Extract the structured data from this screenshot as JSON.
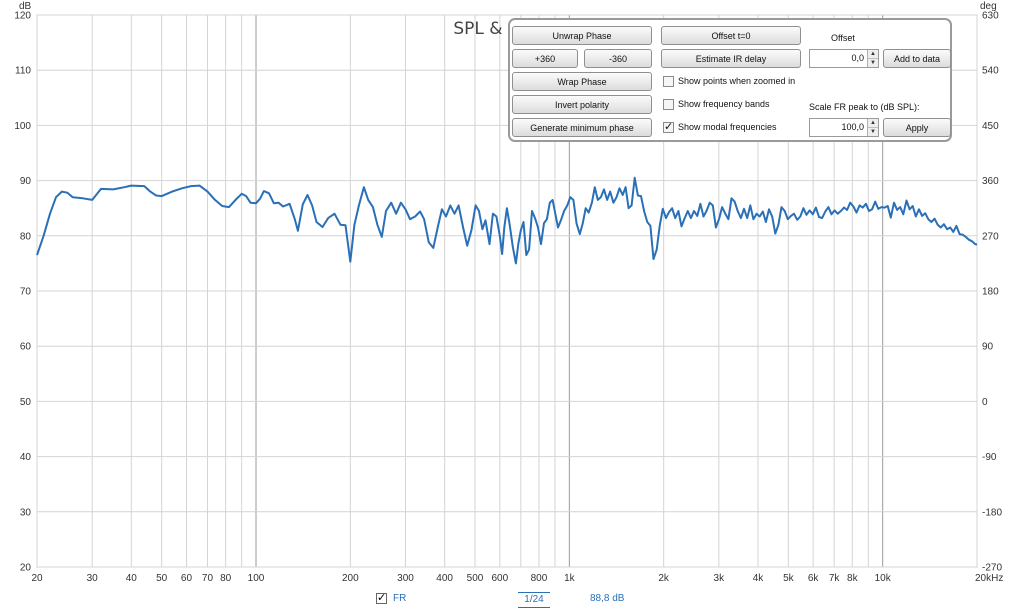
{
  "chart_data": {
    "type": "line",
    "title": "SPL & Phase",
    "left_unit": "dB",
    "right_unit": "deg",
    "x_scale": "log",
    "xlim": [
      20,
      20000
    ],
    "ylim": [
      20,
      120
    ],
    "right_ylim": [
      -270,
      630
    ],
    "grid": true,
    "y_ticks": [
      "20",
      "30",
      "40",
      "50",
      "60",
      "70",
      "80",
      "90",
      "100",
      "110",
      "120"
    ],
    "right_ticks": [
      "-270",
      "-180",
      "-90",
      "0",
      "90",
      "180",
      "270",
      "360",
      "450",
      "540",
      "630"
    ],
    "x_ticks": [
      {
        "value": 20,
        "label": "20"
      },
      {
        "value": 30,
        "label": "30"
      },
      {
        "value": 40,
        "label": "40"
      },
      {
        "value": 50,
        "label": "50"
      },
      {
        "value": 60,
        "label": "60"
      },
      {
        "value": 70,
        "label": "70"
      },
      {
        "value": 80,
        "label": "80"
      },
      {
        "value": 100,
        "label": "100"
      },
      {
        "value": 200,
        "label": "200"
      },
      {
        "value": 300,
        "label": "300"
      },
      {
        "value": 400,
        "label": "400"
      },
      {
        "value": 500,
        "label": "500"
      },
      {
        "value": 600,
        "label": "600"
      },
      {
        "value": 800,
        "label": "800"
      },
      {
        "value": 1000,
        "label": "1k"
      },
      {
        "value": 2000,
        "label": "2k"
      },
      {
        "value": 3000,
        "label": "3k"
      },
      {
        "value": 4000,
        "label": "4k"
      },
      {
        "value": 5000,
        "label": "5k"
      },
      {
        "value": 6000,
        "label": "6k"
      },
      {
        "value": 7000,
        "label": "7k"
      },
      {
        "value": 8000,
        "label": "8k"
      },
      {
        "value": 10000,
        "label": "10k"
      },
      {
        "value": 20000,
        "label": "20kHz"
      }
    ],
    "series": [
      {
        "name": "FR",
        "color": "#2a70b8",
        "points": [
          [
            20,
            76.5
          ],
          [
            21,
            80
          ],
          [
            22,
            84
          ],
          [
            23,
            87
          ],
          [
            24,
            88
          ],
          [
            25,
            87.8
          ],
          [
            26,
            87
          ],
          [
            28,
            86.8
          ],
          [
            30,
            86.5
          ],
          [
            32,
            88.5
          ],
          [
            35,
            88.4
          ],
          [
            38,
            88.8
          ],
          [
            40,
            89.1
          ],
          [
            44,
            89
          ],
          [
            46,
            88
          ],
          [
            48,
            87.3
          ],
          [
            50,
            87.2
          ],
          [
            54,
            88
          ],
          [
            58,
            88.6
          ],
          [
            62,
            89
          ],
          [
            66,
            89.1
          ],
          [
            70,
            88
          ],
          [
            74,
            86.5
          ],
          [
            78,
            85.4
          ],
          [
            82,
            85.2
          ],
          [
            86,
            86.5
          ],
          [
            90,
            87.6
          ],
          [
            93,
            87.2
          ],
          [
            96,
            86
          ],
          [
            100,
            85.9
          ],
          [
            103,
            86.7
          ],
          [
            106,
            88.1
          ],
          [
            110,
            87.7
          ],
          [
            114,
            85.9
          ],
          [
            118,
            86
          ],
          [
            122,
            85.3
          ],
          [
            128,
            85.8
          ],
          [
            133,
            83
          ],
          [
            136,
            80.9
          ],
          [
            141,
            85.7
          ],
          [
            146,
            87.4
          ],
          [
            151,
            85.5
          ],
          [
            156,
            82.5
          ],
          [
            163,
            81.6
          ],
          [
            170,
            83.2
          ],
          [
            178,
            84
          ],
          [
            186,
            82
          ],
          [
            193,
            81.9
          ],
          [
            200,
            75.3
          ],
          [
            206,
            82
          ],
          [
            213,
            85.5
          ],
          [
            221,
            88.8
          ],
          [
            228,
            86.5
          ],
          [
            236,
            85.2
          ],
          [
            244,
            82
          ],
          [
            252,
            79.8
          ],
          [
            260,
            84.5
          ],
          [
            270,
            86
          ],
          [
            280,
            84
          ],
          [
            290,
            86
          ],
          [
            300,
            84.8
          ],
          [
            310,
            83
          ],
          [
            322,
            83.5
          ],
          [
            334,
            84.4
          ],
          [
            344,
            83
          ],
          [
            356,
            78.8
          ],
          [
            368,
            77.8
          ],
          [
            380,
            81.5
          ],
          [
            392,
            84.8
          ],
          [
            404,
            83.5
          ],
          [
            417,
            85.5
          ],
          [
            430,
            84
          ],
          [
            443,
            85.5
          ],
          [
            458,
            81.5
          ],
          [
            472,
            78.2
          ],
          [
            487,
            81
          ],
          [
            502,
            85.5
          ],
          [
            515,
            84.5
          ],
          [
            528,
            81.2
          ],
          [
            540,
            82.8
          ],
          [
            556,
            78.5
          ],
          [
            570,
            84
          ],
          [
            585,
            83.5
          ],
          [
            600,
            80
          ],
          [
            610,
            76.7
          ],
          [
            620,
            81.5
          ],
          [
            632,
            85
          ],
          [
            645,
            82
          ],
          [
            660,
            78
          ],
          [
            675,
            75
          ],
          [
            687,
            78.5
          ],
          [
            700,
            81
          ],
          [
            714,
            82.5
          ],
          [
            729,
            76.5
          ],
          [
            744,
            77.5
          ],
          [
            760,
            84.5
          ],
          [
            777,
            83.2
          ],
          [
            794,
            81.5
          ],
          [
            812,
            78.5
          ],
          [
            830,
            82.3
          ],
          [
            848,
            83
          ],
          [
            866,
            86
          ],
          [
            884,
            86.5
          ],
          [
            902,
            84
          ],
          [
            920,
            81.5
          ],
          [
            940,
            82.8
          ],
          [
            962,
            84.5
          ],
          [
            985,
            85.5
          ],
          [
            1007,
            87
          ],
          [
            1030,
            86.5
          ],
          [
            1055,
            82.2
          ],
          [
            1080,
            80.3
          ],
          [
            1104,
            82.3
          ],
          [
            1128,
            85
          ],
          [
            1153,
            84.2
          ],
          [
            1180,
            86
          ],
          [
            1206,
            88.8
          ],
          [
            1233,
            86.5
          ],
          [
            1260,
            87
          ],
          [
            1290,
            88.4
          ],
          [
            1320,
            86.5
          ],
          [
            1350,
            88
          ],
          [
            1382,
            86
          ],
          [
            1414,
            87
          ],
          [
            1446,
            88.6
          ],
          [
            1480,
            87.4
          ],
          [
            1512,
            88.8
          ],
          [
            1546,
            85
          ],
          [
            1580,
            85.5
          ],
          [
            1616,
            90.5
          ],
          [
            1655,
            87.3
          ],
          [
            1693,
            87.2
          ],
          [
            1733,
            84.4
          ],
          [
            1773,
            82.5
          ],
          [
            1814,
            81.8
          ],
          [
            1856,
            75.8
          ],
          [
            1900,
            77.5
          ],
          [
            1943,
            81.8
          ],
          [
            1988,
            84.9
          ],
          [
            2034,
            83.2
          ],
          [
            2080,
            84.3
          ],
          [
            2128,
            85
          ],
          [
            2177,
            83.2
          ],
          [
            2228,
            84.5
          ],
          [
            2280,
            81.7
          ],
          [
            2334,
            83.2
          ],
          [
            2388,
            84.5
          ],
          [
            2444,
            83.2
          ],
          [
            2500,
            84.5
          ],
          [
            2560,
            83.6
          ],
          [
            2620,
            85.8
          ],
          [
            2680,
            83.5
          ],
          [
            2740,
            84.5
          ],
          [
            2805,
            86
          ],
          [
            2870,
            85.5
          ],
          [
            2936,
            81.5
          ],
          [
            3004,
            83
          ],
          [
            3073,
            85.2
          ],
          [
            3146,
            84
          ],
          [
            3218,
            83
          ],
          [
            3292,
            86.8
          ],
          [
            3368,
            86.2
          ],
          [
            3447,
            84.5
          ],
          [
            3528,
            83.2
          ],
          [
            3610,
            84.9
          ],
          [
            3694,
            83.2
          ],
          [
            3780,
            85.5
          ],
          [
            3868,
            83
          ],
          [
            3958,
            84
          ],
          [
            4050,
            83.5
          ],
          [
            4143,
            84.4
          ],
          [
            4240,
            82.5
          ],
          [
            4338,
            84.8
          ],
          [
            4440,
            83.5
          ],
          [
            4543,
            80.4
          ],
          [
            4648,
            82
          ],
          [
            4755,
            85.2
          ],
          [
            4866,
            84.5
          ],
          [
            4979,
            83
          ],
          [
            5095,
            83.6
          ],
          [
            5213,
            84
          ],
          [
            5334,
            82.9
          ],
          [
            5458,
            83.5
          ],
          [
            5585,
            85
          ],
          [
            5714,
            83.8
          ],
          [
            5847,
            84.6
          ],
          [
            5982,
            83.9
          ],
          [
            6121,
            85.1
          ],
          [
            6263,
            83.4
          ],
          [
            6409,
            83.2
          ],
          [
            6558,
            84.4
          ],
          [
            6710,
            85.2
          ],
          [
            6866,
            83.9
          ],
          [
            7025,
            84.6
          ],
          [
            7188,
            84
          ],
          [
            7355,
            84.5
          ],
          [
            7526,
            85.1
          ],
          [
            7700,
            84.7
          ],
          [
            7879,
            86
          ],
          [
            8062,
            85.3
          ],
          [
            8249,
            84.2
          ],
          [
            8440,
            85.5
          ],
          [
            8636,
            85.1
          ],
          [
            8837,
            85.8
          ],
          [
            9042,
            84.5
          ],
          [
            9252,
            84.8
          ],
          [
            9467,
            86.2
          ],
          [
            9686,
            84.9
          ],
          [
            9912,
            85.2
          ],
          [
            10141,
            85.1
          ],
          [
            10377,
            85.4
          ],
          [
            10618,
            83.3
          ],
          [
            10864,
            86
          ],
          [
            11117,
            84.7
          ],
          [
            11375,
            85.2
          ],
          [
            11640,
            83.9
          ],
          [
            11910,
            86.4
          ],
          [
            12186,
            84.8
          ],
          [
            12469,
            85.4
          ],
          [
            12758,
            83.5
          ],
          [
            13055,
            84.8
          ],
          [
            13357,
            83.6
          ],
          [
            13668,
            84.1
          ],
          [
            13986,
            83
          ],
          [
            14310,
            82.5
          ],
          [
            14642,
            83.1
          ],
          [
            14982,
            82
          ],
          [
            15330,
            81.5
          ],
          [
            15686,
            82.1
          ],
          [
            16050,
            81.2
          ],
          [
            16424,
            81.5
          ],
          [
            16805,
            80.7
          ],
          [
            17195,
            81.8
          ],
          [
            17594,
            80.3
          ],
          [
            18002,
            80.2
          ],
          [
            18420,
            79.8
          ],
          [
            18848,
            79.3
          ],
          [
            19285,
            79
          ],
          [
            19733,
            78.5
          ],
          [
            20000,
            78.4
          ]
        ]
      }
    ],
    "legend": [
      {
        "name": "FR",
        "checked": true,
        "smoothing": "1/24",
        "readout": "88,8 dB"
      }
    ]
  },
  "panel": {
    "unwrap_phase": "Unwrap Phase",
    "plus360": "+360",
    "minus360": "-360",
    "wrap_phase": "Wrap Phase",
    "invert_polarity": "Invert polarity",
    "generate_min_phase": "Generate minimum phase",
    "offset_t0": "Offset t=0",
    "estimate_ir_delay": "Estimate IR delay",
    "show_points": {
      "label": "Show points when zoomed in",
      "checked": false
    },
    "show_bands": {
      "label": "Show frequency bands",
      "checked": false
    },
    "show_modal": {
      "label": "Show modal frequencies",
      "checked": true
    },
    "offset_label": "Offset",
    "offset_value": "0,0",
    "add_to_data": "Add to data",
    "scale_label": "Scale FR peak to (dB SPL):",
    "scale_value": "100,0",
    "apply": "Apply",
    "checkmark": "✓"
  }
}
